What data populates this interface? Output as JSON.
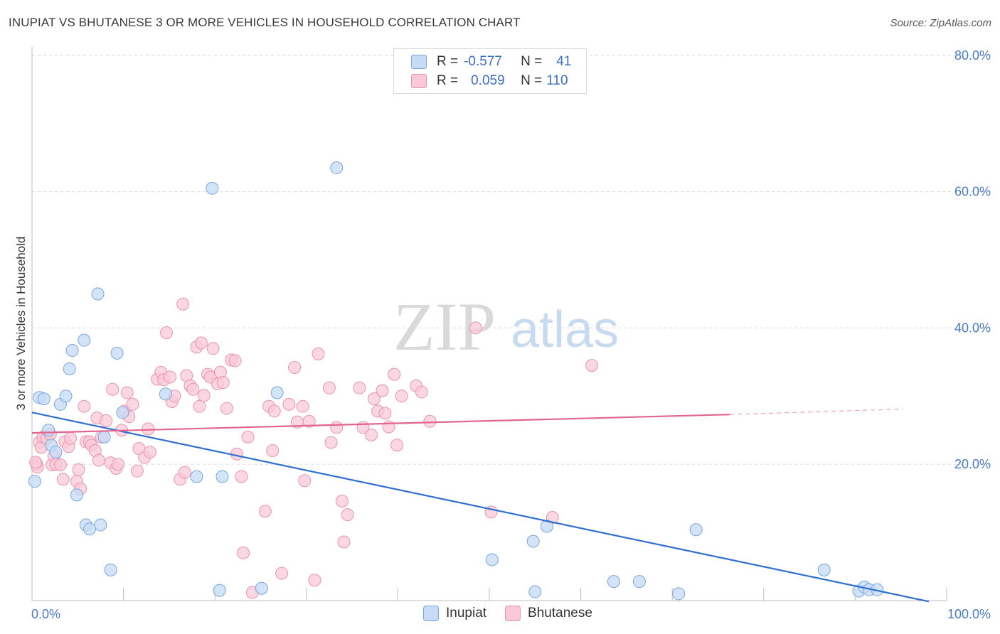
{
  "title": "INUPIAT VS BHUTANESE 3 OR MORE VEHICLES IN HOUSEHOLD CORRELATION CHART",
  "source": "Source: ZipAtlas.com",
  "watermark": {
    "zip": "ZIP",
    "atlas": "atlas"
  },
  "legend": {
    "rows": [
      {
        "r_label": "R =",
        "r_value": "-0.577",
        "n_label": "N =",
        "n_value": "41"
      },
      {
        "r_label": "R =",
        "r_value": "0.059",
        "n_label": "N =",
        "n_value": "110"
      }
    ]
  },
  "bottom_legend": [
    "Inupiat",
    "Bhutanese"
  ],
  "colors": {
    "inupiat_fill": "#c6dbf5",
    "inupiat_stroke": "#7aa6dc",
    "inupiat_line": "#2f6fd0",
    "bhutanese_fill": "#f9c9d7",
    "bhutanese_stroke": "#e994b0",
    "bhutanese_line": "#e2648f",
    "grid": "#dcdcdc",
    "tick_text": "#4a7cc6"
  },
  "chart_data": {
    "type": "scatter",
    "title": "INUPIAT VS BHUTANESE 3 OR MORE VEHICLES IN HOUSEHOLD CORRELATION CHART",
    "xlabel": "",
    "ylabel": "3 or more Vehicles in Household",
    "xlim": [
      0,
      100
    ],
    "ylim": [
      0,
      82
    ],
    "x_tick_labels": [
      "0.0%",
      "100.0%"
    ],
    "y_ticks": [
      20,
      40,
      60,
      80
    ],
    "y_tick_labels": [
      "20.0%",
      "40.0%",
      "60.0%",
      "80.0%"
    ],
    "grid": true,
    "legend_position": "top-center",
    "series": [
      {
        "name": "Inupiat",
        "R": -0.577,
        "N": 41,
        "trend": {
          "x0": 0,
          "y0": 27.6,
          "x1": 100,
          "y1": -0.2
        },
        "points": [
          [
            0.3,
            17.5
          ],
          [
            0.8,
            29.8
          ],
          [
            1.3,
            29.6
          ],
          [
            1.8,
            25.0
          ],
          [
            2.1,
            22.8
          ],
          [
            2.6,
            21.8
          ],
          [
            3.1,
            28.8
          ],
          [
            3.7,
            30.0
          ],
          [
            4.1,
            34.0
          ],
          [
            4.4,
            36.7
          ],
          [
            4.9,
            15.5
          ],
          [
            5.7,
            38.2
          ],
          [
            5.9,
            11.1
          ],
          [
            6.3,
            10.5
          ],
          [
            7.2,
            45.0
          ],
          [
            7.5,
            11.1
          ],
          [
            7.9,
            24.0
          ],
          [
            8.6,
            4.5
          ],
          [
            9.3,
            36.3
          ],
          [
            9.9,
            27.6
          ],
          [
            14.6,
            30.3
          ],
          [
            18.0,
            18.2
          ],
          [
            19.7,
            60.5
          ],
          [
            20.5,
            1.5
          ],
          [
            20.8,
            18.2
          ],
          [
            25.1,
            1.8
          ],
          [
            26.8,
            30.5
          ],
          [
            33.3,
            63.5
          ],
          [
            50.3,
            6.0
          ],
          [
            54.8,
            8.7
          ],
          [
            55.0,
            1.3
          ],
          [
            56.3,
            10.9
          ],
          [
            63.6,
            2.8
          ],
          [
            66.4,
            2.8
          ],
          [
            70.7,
            1.0
          ],
          [
            72.6,
            10.4
          ],
          [
            86.6,
            4.5
          ],
          [
            90.4,
            1.4
          ],
          [
            91.0,
            2.0
          ],
          [
            91.5,
            1.6
          ],
          [
            92.4,
            1.6
          ]
        ]
      },
      {
        "name": "Bhutanese",
        "R": 0.059,
        "N": 110,
        "trend": {
          "x0": 0,
          "y0": 24.6,
          "x1": 76.3,
          "y1": 27.3,
          "dash_to_x": 95.2,
          "dash_to_y": 28.1
        },
        "points": [
          [
            0.5,
            20.0
          ],
          [
            0.6,
            19.6
          ],
          [
            0.8,
            23.2
          ],
          [
            1.0,
            22.5
          ],
          [
            1.2,
            24.0
          ],
          [
            1.6,
            23.8
          ],
          [
            2.0,
            24.4
          ],
          [
            2.2,
            19.9
          ],
          [
            2.4,
            21.2
          ],
          [
            2.6,
            20.0
          ],
          [
            3.1,
            19.9
          ],
          [
            3.4,
            17.8
          ],
          [
            3.6,
            23.3
          ],
          [
            4.0,
            22.6
          ],
          [
            4.2,
            23.8
          ],
          [
            4.9,
            17.5
          ],
          [
            5.1,
            19.2
          ],
          [
            5.3,
            16.4
          ],
          [
            5.7,
            28.5
          ],
          [
            5.9,
            23.3
          ],
          [
            6.3,
            23.3
          ],
          [
            6.5,
            22.8
          ],
          [
            6.9,
            22.0
          ],
          [
            7.1,
            26.8
          ],
          [
            7.3,
            20.6
          ],
          [
            7.6,
            24.0
          ],
          [
            8.1,
            26.4
          ],
          [
            8.6,
            20.2
          ],
          [
            8.8,
            31.0
          ],
          [
            9.2,
            19.4
          ],
          [
            9.4,
            20.0
          ],
          [
            9.8,
            25.0
          ],
          [
            10.1,
            27.8
          ],
          [
            10.4,
            30.5
          ],
          [
            10.6,
            27.0
          ],
          [
            11.0,
            28.8
          ],
          [
            11.5,
            19.0
          ],
          [
            11.7,
            22.3
          ],
          [
            12.3,
            21.0
          ],
          [
            12.7,
            25.2
          ],
          [
            12.9,
            21.8
          ],
          [
            13.7,
            32.5
          ],
          [
            14.1,
            33.5
          ],
          [
            14.4,
            32.4
          ],
          [
            14.7,
            39.3
          ],
          [
            15.1,
            32.8
          ],
          [
            15.3,
            29.2
          ],
          [
            15.6,
            30.0
          ],
          [
            16.2,
            17.8
          ],
          [
            16.5,
            43.5
          ],
          [
            16.7,
            18.8
          ],
          [
            16.9,
            33.0
          ],
          [
            17.3,
            31.5
          ],
          [
            17.6,
            31.0
          ],
          [
            18.0,
            37.2
          ],
          [
            18.3,
            28.5
          ],
          [
            18.5,
            37.8
          ],
          [
            18.8,
            30.1
          ],
          [
            19.2,
            33.2
          ],
          [
            19.5,
            32.8
          ],
          [
            19.8,
            37.0
          ],
          [
            20.3,
            31.8
          ],
          [
            20.6,
            33.5
          ],
          [
            20.9,
            32.0
          ],
          [
            21.3,
            28.2
          ],
          [
            21.8,
            35.3
          ],
          [
            22.2,
            35.2
          ],
          [
            22.4,
            21.5
          ],
          [
            22.9,
            18.2
          ],
          [
            23.1,
            7.0
          ],
          [
            23.6,
            24.0
          ],
          [
            24.1,
            1.2
          ],
          [
            25.5,
            13.1
          ],
          [
            25.9,
            28.5
          ],
          [
            26.3,
            22.0
          ],
          [
            26.5,
            27.8
          ],
          [
            27.3,
            4.0
          ],
          [
            28.1,
            28.8
          ],
          [
            28.7,
            34.2
          ],
          [
            29.0,
            26.2
          ],
          [
            29.6,
            28.5
          ],
          [
            29.8,
            17.6
          ],
          [
            30.3,
            26.3
          ],
          [
            30.9,
            3.0
          ],
          [
            31.3,
            36.2
          ],
          [
            32.5,
            31.2
          ],
          [
            32.7,
            23.2
          ],
          [
            33.3,
            25.4
          ],
          [
            33.9,
            14.6
          ],
          [
            34.1,
            8.6
          ],
          [
            34.5,
            12.6
          ],
          [
            35.8,
            31.2
          ],
          [
            36.2,
            25.4
          ],
          [
            37.1,
            24.3
          ],
          [
            37.4,
            29.6
          ],
          [
            37.8,
            27.8
          ],
          [
            38.3,
            30.8
          ],
          [
            38.6,
            27.5
          ],
          [
            39.0,
            25.5
          ],
          [
            39.6,
            33.2
          ],
          [
            39.9,
            22.8
          ],
          [
            40.4,
            30.0
          ],
          [
            42.0,
            31.5
          ],
          [
            42.6,
            30.6
          ],
          [
            43.5,
            26.3
          ],
          [
            48.5,
            40.0
          ],
          [
            50.2,
            13.0
          ],
          [
            56.9,
            12.2
          ],
          [
            61.2,
            34.5
          ],
          [
            0.4,
            20.3
          ]
        ]
      }
    ]
  }
}
